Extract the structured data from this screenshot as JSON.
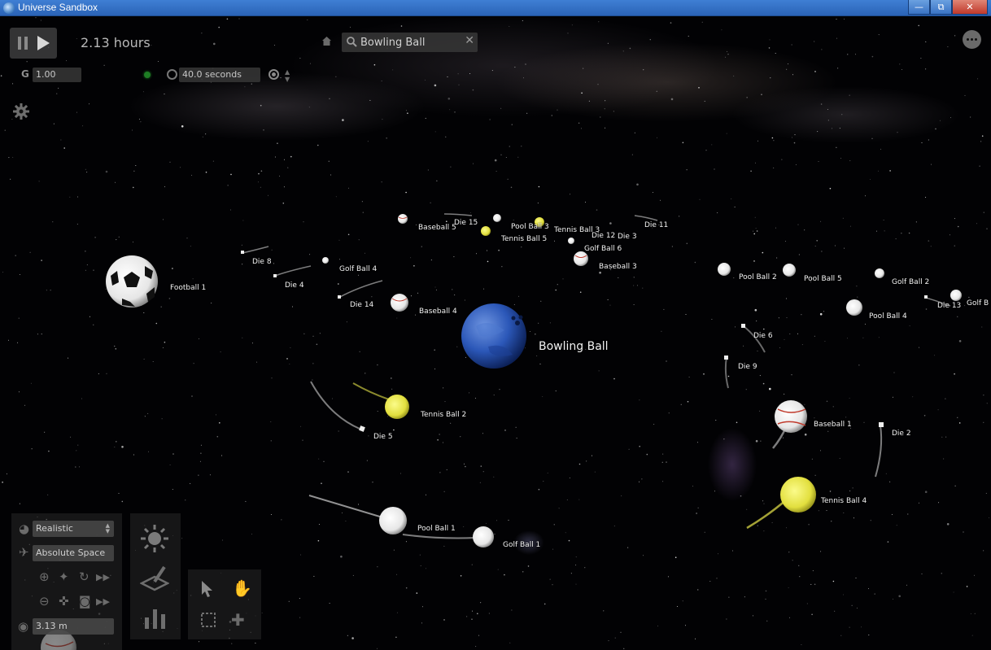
{
  "window": {
    "title": "Universe Sandbox"
  },
  "toolbar": {
    "elapsed_time": "2.13 hours",
    "search_value": "Bowling Ball",
    "gravity_label": "G",
    "gravity_value": "1.00",
    "timestep_value": "40.0 seconds"
  },
  "objects": [
    {
      "name": "football",
      "label": "Football 1"
    },
    {
      "name": "die-8",
      "label": "Die 8"
    },
    {
      "name": "die-4",
      "label": "Die 4"
    },
    {
      "name": "golf-ball-4",
      "label": "Golf Ball 4"
    },
    {
      "name": "die-14",
      "label": "Die 14"
    },
    {
      "name": "baseball-4",
      "label": "Baseball 4"
    },
    {
      "name": "baseball-5",
      "label": "Baseball 5"
    },
    {
      "name": "die-15",
      "label": "Die 15"
    },
    {
      "name": "pool-ball-3",
      "label": "Pool Ball 3"
    },
    {
      "name": "tennis-ball-5",
      "label": "Tennis Ball 5"
    },
    {
      "name": "tennis-ball-3",
      "label": "Tennis Ball 3"
    },
    {
      "name": "die-12",
      "label": "Die 12"
    },
    {
      "name": "die-3",
      "label": "Die 3"
    },
    {
      "name": "die-11",
      "label": "Die 11"
    },
    {
      "name": "golf-ball-6",
      "label": "Golf Ball 6"
    },
    {
      "name": "baseball-3",
      "label": "Baseball 3"
    },
    {
      "name": "bowling-ball",
      "label": "Bowling Ball"
    },
    {
      "name": "pool-ball-2",
      "label": "Pool Ball 2"
    },
    {
      "name": "pool-ball-5",
      "label": "Pool Ball 5"
    },
    {
      "name": "golf-ball-2",
      "label": "Golf Ball 2"
    },
    {
      "name": "die-13",
      "label": "Die 13"
    },
    {
      "name": "golf-ball-8",
      "label": "Golf B"
    },
    {
      "name": "pool-ball-4",
      "label": "Pool Ball 4"
    },
    {
      "name": "die-6",
      "label": "Die 6"
    },
    {
      "name": "die-9",
      "label": "Die 9"
    },
    {
      "name": "tennis-ball-2",
      "label": "Tennis Ball 2"
    },
    {
      "name": "die-5",
      "label": "Die 5"
    },
    {
      "name": "baseball-1",
      "label": "Baseball 1"
    },
    {
      "name": "die-2",
      "label": "Die 2"
    },
    {
      "name": "tennis-ball-4",
      "label": "Tennis Ball 4"
    },
    {
      "name": "pool-ball-1",
      "label": "Pool Ball 1"
    },
    {
      "name": "golf-ball-1",
      "label": "Golf Ball 1"
    }
  ],
  "bottom_panel": {
    "appearance_mode": "Realistic",
    "reference_frame": "Absolute Space",
    "zoom_distance": "3.13 m"
  },
  "colors": {
    "bowling_ball": "#2b57b8",
    "tennis_ball": "#e8e64a",
    "title_bar": "#3270c8"
  }
}
